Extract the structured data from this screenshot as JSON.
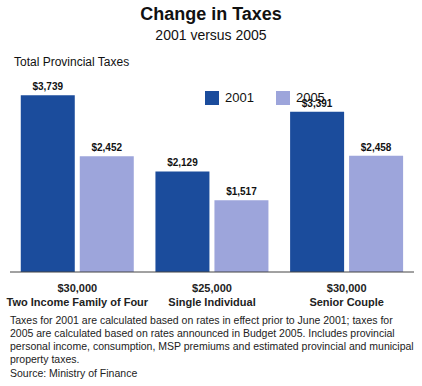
{
  "chart_data": {
    "type": "bar",
    "title": "Change in Taxes",
    "subtitle": "2001 versus 2005",
    "y_label": "Total Provincial Taxes",
    "categories": [
      "$30,000\nTwo Income Family of Four",
      "$25,000\nSingle Individual",
      "$30,000\nSenior Couple"
    ],
    "series": [
      {
        "name": "2001",
        "color": "#1b4c9c",
        "values": [
          3739,
          2129,
          3391
        ],
        "value_labels": [
          "$3,739",
          "$2,129",
          "$3,391"
        ]
      },
      {
        "name": "2005",
        "color": "#9da5db",
        "values": [
          2452,
          1517,
          2458
        ],
        "value_labels": [
          "$2,452",
          "$1,517",
          "$2,458"
        ]
      }
    ],
    "ylim": [
      0,
      4000
    ],
    "tick_labels": "x",
    "data_labels": true,
    "legend": "top",
    "grid": false,
    "notes": "Taxes for 2001 are calculated based on rates in effect prior to June 2001; taxes for 2005 are calculated based on rates announced in Budget 2005. Includes provincial personal income, consumption, MSP premiums and estimated provincial and municipal property taxes.",
    "source": "Source: Ministry of Finance"
  }
}
